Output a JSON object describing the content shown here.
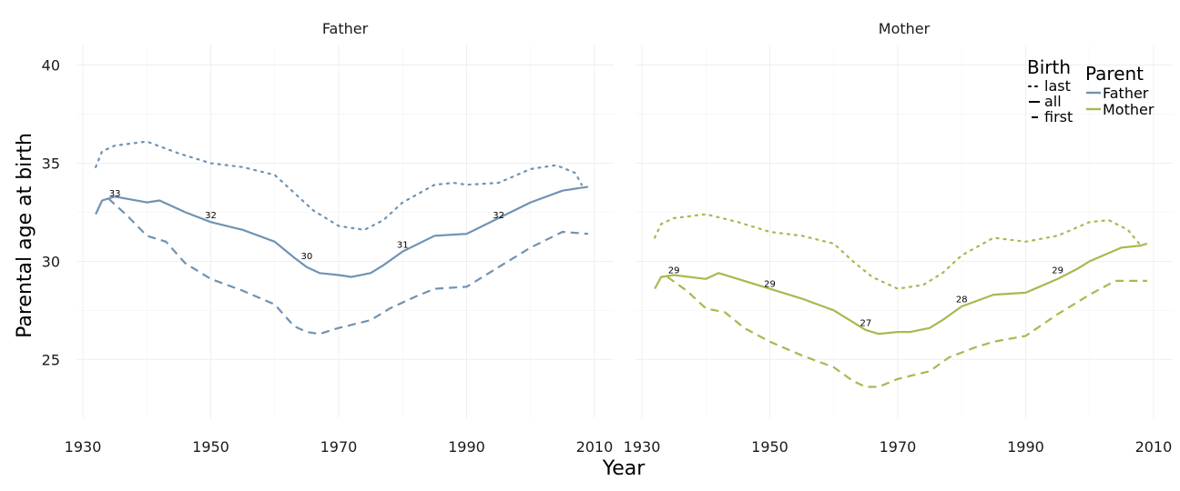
{
  "chart_data": {
    "type": "line",
    "xlabel": "Year",
    "ylabel": "Parental age at birth",
    "xlim": [
      1929,
      2013
    ],
    "ylim": [
      22,
      41
    ],
    "x_ticks": [
      1930,
      1950,
      1970,
      1990,
      2010
    ],
    "y_ticks": [
      25,
      30,
      35,
      40
    ],
    "grid": true,
    "legend_placement": "top-right",
    "legend": {
      "linetype_title": "Birth",
      "linetype_entries": [
        {
          "label": "last",
          "dash": "dotted"
        },
        {
          "label": "all",
          "dash": "solid"
        },
        {
          "label": "first",
          "dash": "dashed"
        }
      ],
      "color_title": "Parent",
      "color_entries": [
        {
          "label": "Father",
          "color": "#6f93b4"
        },
        {
          "label": "Mother",
          "color": "#a9b84f"
        }
      ]
    },
    "panels": [
      {
        "title": "Father",
        "color": "#6f93b4",
        "series": [
          {
            "birth": "last",
            "dash": "dotted",
            "points": [
              [
                1932,
                34.8
              ],
              [
                1933,
                35.6
              ],
              [
                1935,
                35.9
              ],
              [
                1940,
                36.1
              ],
              [
                1945,
                35.5
              ],
              [
                1950,
                35.0
              ],
              [
                1955,
                34.8
              ],
              [
                1960,
                34.4
              ],
              [
                1963,
                33.5
              ],
              [
                1966,
                32.6
              ],
              [
                1970,
                31.8
              ],
              [
                1974,
                31.6
              ],
              [
                1977,
                32.1
              ],
              [
                1980,
                33.0
              ],
              [
                1985,
                33.9
              ],
              [
                1988,
                34.0
              ],
              [
                1990,
                33.9
              ],
              [
                1995,
                34.0
              ],
              [
                2000,
                34.7
              ],
              [
                2004,
                34.9
              ],
              [
                2007,
                34.5
              ],
              [
                2008,
                33.9
              ]
            ]
          },
          {
            "birth": "all",
            "dash": "solid",
            "points": [
              [
                1932,
                32.4
              ],
              [
                1933,
                33.1
              ],
              [
                1935,
                33.3
              ],
              [
                1940,
                33.0
              ],
              [
                1942,
                33.1
              ],
              [
                1946,
                32.5
              ],
              [
                1950,
                32.0
              ],
              [
                1955,
                31.6
              ],
              [
                1960,
                31.0
              ],
              [
                1963,
                30.2
              ],
              [
                1965,
                29.7
              ],
              [
                1967,
                29.4
              ],
              [
                1970,
                29.3
              ],
              [
                1972,
                29.2
              ],
              [
                1975,
                29.4
              ],
              [
                1977,
                29.8
              ],
              [
                1980,
                30.5
              ],
              [
                1985,
                31.3
              ],
              [
                1990,
                31.4
              ],
              [
                1995,
                32.2
              ],
              [
                2000,
                33.0
              ],
              [
                2005,
                33.6
              ],
              [
                2009,
                33.8
              ]
            ]
          },
          {
            "birth": "first",
            "dash": "dashed",
            "points": [
              [
                1934,
                33.2
              ],
              [
                1937,
                32.3
              ],
              [
                1940,
                31.3
              ],
              [
                1943,
                31.0
              ],
              [
                1946,
                29.9
              ],
              [
                1950,
                29.1
              ],
              [
                1955,
                28.5
              ],
              [
                1960,
                27.8
              ],
              [
                1963,
                26.7
              ],
              [
                1965,
                26.4
              ],
              [
                1967,
                26.3
              ],
              [
                1970,
                26.6
              ],
              [
                1975,
                27.0
              ],
              [
                1978,
                27.6
              ],
              [
                1982,
                28.2
              ],
              [
                1985,
                28.6
              ],
              [
                1990,
                28.7
              ],
              [
                1995,
                29.7
              ],
              [
                2000,
                30.7
              ],
              [
                2005,
                31.5
              ],
              [
                2009,
                31.4
              ]
            ]
          }
        ],
        "labels": [
          {
            "x": 1935,
            "y": 33.3,
            "text": "33"
          },
          {
            "x": 1950,
            "y": 32.2,
            "text": "32"
          },
          {
            "x": 1965,
            "y": 30.1,
            "text": "30"
          },
          {
            "x": 1980,
            "y": 30.7,
            "text": "31"
          },
          {
            "x": 1995,
            "y": 32.2,
            "text": "32"
          }
        ]
      },
      {
        "title": "Mother",
        "color": "#a9b84f",
        "series": [
          {
            "birth": "last",
            "dash": "dotted",
            "points": [
              [
                1932,
                31.2
              ],
              [
                1933,
                31.9
              ],
              [
                1935,
                32.2
              ],
              [
                1940,
                32.4
              ],
              [
                1945,
                32.0
              ],
              [
                1950,
                31.5
              ],
              [
                1955,
                31.3
              ],
              [
                1960,
                30.9
              ],
              [
                1963,
                30.0
              ],
              [
                1966,
                29.2
              ],
              [
                1970,
                28.6
              ],
              [
                1974,
                28.8
              ],
              [
                1977,
                29.4
              ],
              [
                1980,
                30.3
              ],
              [
                1985,
                31.2
              ],
              [
                1990,
                31.0
              ],
              [
                1995,
                31.3
              ],
              [
                2000,
                32.0
              ],
              [
                2003,
                32.1
              ],
              [
                2006,
                31.6
              ],
              [
                2008,
                30.8
              ]
            ]
          },
          {
            "birth": "all",
            "dash": "solid",
            "points": [
              [
                1932,
                28.6
              ],
              [
                1933,
                29.2
              ],
              [
                1935,
                29.3
              ],
              [
                1940,
                29.1
              ],
              [
                1942,
                29.4
              ],
              [
                1946,
                29.0
              ],
              [
                1950,
                28.6
              ],
              [
                1955,
                28.1
              ],
              [
                1960,
                27.5
              ],
              [
                1963,
                26.9
              ],
              [
                1965,
                26.5
              ],
              [
                1967,
                26.3
              ],
              [
                1970,
                26.4
              ],
              [
                1972,
                26.4
              ],
              [
                1975,
                26.6
              ],
              [
                1977,
                27.0
              ],
              [
                1980,
                27.7
              ],
              [
                1985,
                28.3
              ],
              [
                1990,
                28.4
              ],
              [
                1995,
                29.1
              ],
              [
                1998,
                29.6
              ],
              [
                2000,
                30.0
              ],
              [
                2005,
                30.7
              ],
              [
                2008,
                30.8
              ],
              [
                2009,
                30.9
              ]
            ]
          },
          {
            "birth": "first",
            "dash": "dashed",
            "points": [
              [
                1934,
                29.2
              ],
              [
                1937,
                28.5
              ],
              [
                1940,
                27.6
              ],
              [
                1943,
                27.4
              ],
              [
                1946,
                26.6
              ],
              [
                1950,
                25.9
              ],
              [
                1955,
                25.2
              ],
              [
                1960,
                24.6
              ],
              [
                1963,
                23.9
              ],
              [
                1965,
                23.6
              ],
              [
                1967,
                23.6
              ],
              [
                1970,
                24.0
              ],
              [
                1975,
                24.4
              ],
              [
                1978,
                25.1
              ],
              [
                1982,
                25.6
              ],
              [
                1985,
                25.9
              ],
              [
                1990,
                26.2
              ],
              [
                1995,
                27.3
              ],
              [
                2000,
                28.3
              ],
              [
                2004,
                29.0
              ],
              [
                2007,
                29.0
              ],
              [
                2009,
                29.0
              ]
            ]
          }
        ],
        "labels": [
          {
            "x": 1935,
            "y": 29.4,
            "text": "29"
          },
          {
            "x": 1950,
            "y": 28.7,
            "text": "29"
          },
          {
            "x": 1965,
            "y": 26.7,
            "text": "27"
          },
          {
            "x": 1980,
            "y": 27.9,
            "text": "28"
          },
          {
            "x": 1995,
            "y": 29.4,
            "text": "29"
          }
        ]
      }
    ]
  }
}
